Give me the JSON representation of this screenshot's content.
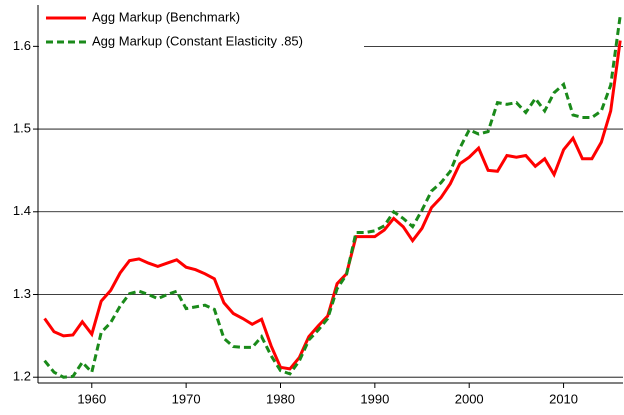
{
  "chart_data": {
    "type": "line",
    "x": [
      1955,
      1956,
      1957,
      1958,
      1959,
      1960,
      1961,
      1962,
      1963,
      1964,
      1965,
      1966,
      1967,
      1968,
      1969,
      1970,
      1971,
      1972,
      1973,
      1974,
      1975,
      1976,
      1977,
      1978,
      1979,
      1980,
      1981,
      1982,
      1983,
      1984,
      1985,
      1986,
      1987,
      1988,
      1989,
      1990,
      1991,
      1992,
      1993,
      1994,
      1995,
      1996,
      1997,
      1998,
      1999,
      2000,
      2001,
      2002,
      2003,
      2004,
      2005,
      2006,
      2007,
      2008,
      2009,
      2010,
      2011,
      2012,
      2013,
      2014,
      2015,
      2016
    ],
    "series": [
      {
        "name": "Agg Markup (Benchmark)",
        "color": "#ff0000",
        "line_style": "solid",
        "values": [
          1.271,
          1.255,
          1.25,
          1.251,
          1.267,
          1.252,
          1.292,
          1.305,
          1.326,
          1.341,
          1.343,
          1.338,
          1.334,
          1.338,
          1.342,
          1.333,
          1.33,
          1.325,
          1.319,
          1.29,
          1.277,
          1.271,
          1.264,
          1.27,
          1.238,
          1.212,
          1.21,
          1.224,
          1.249,
          1.262,
          1.274,
          1.313,
          1.325,
          1.37,
          1.37,
          1.37,
          1.378,
          1.392,
          1.382,
          1.365,
          1.38,
          1.405,
          1.417,
          1.434,
          1.458,
          1.466,
          1.477,
          1.45,
          1.449,
          1.468,
          1.466,
          1.468,
          1.455,
          1.464,
          1.445,
          1.475,
          1.489,
          1.464,
          1.464,
          1.484,
          1.522,
          1.607
        ]
      },
      {
        "name": "Agg Markup (Constant Elasticity .85)",
        "color": "#1a8a1a",
        "line_style": "dashed",
        "values": [
          1.22,
          1.206,
          1.2,
          1.201,
          1.218,
          1.206,
          1.254,
          1.266,
          1.286,
          1.301,
          1.304,
          1.3,
          1.295,
          1.3,
          1.304,
          1.283,
          1.285,
          1.287,
          1.282,
          1.247,
          1.237,
          1.236,
          1.236,
          1.249,
          1.226,
          1.208,
          1.204,
          1.22,
          1.245,
          1.257,
          1.271,
          1.307,
          1.324,
          1.375,
          1.375,
          1.377,
          1.383,
          1.4,
          1.392,
          1.382,
          1.402,
          1.425,
          1.435,
          1.449,
          1.477,
          1.499,
          1.494,
          1.497,
          1.532,
          1.53,
          1.532,
          1.52,
          1.537,
          1.522,
          1.544,
          1.554,
          1.517,
          1.514,
          1.514,
          1.522,
          1.553,
          1.637
        ]
      }
    ],
    "xlim": [
      1954.3,
      2016.3
    ],
    "xticks": [
      1960,
      1970,
      1980,
      1990,
      2000,
      2010
    ],
    "ylim": [
      1.193,
      1.65
    ],
    "yticks": [
      1.2,
      1.3,
      1.4,
      1.5,
      1.6
    ],
    "grid": true,
    "legend": "top-left"
  }
}
